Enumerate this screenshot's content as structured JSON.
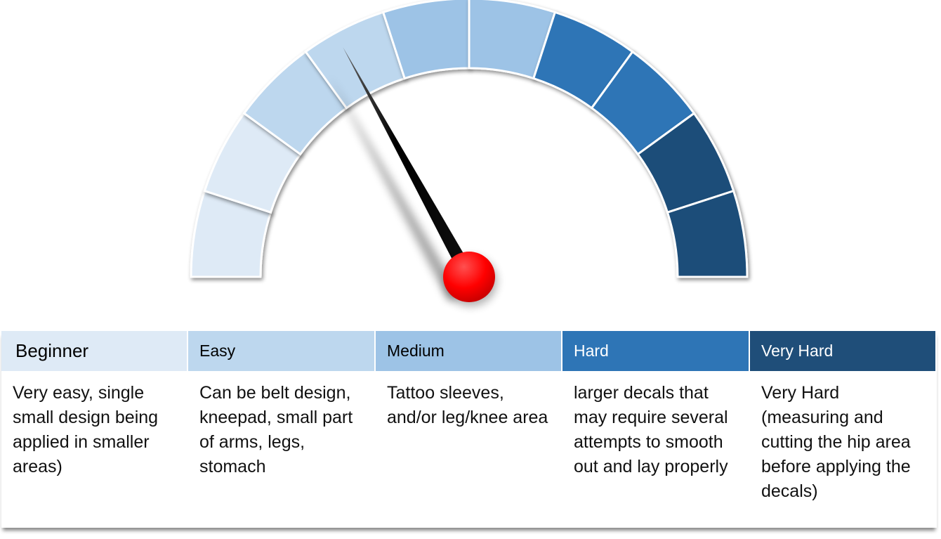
{
  "gauge": {
    "needle_value": 0.34,
    "segment_colors": [
      "#DEEAF6",
      "#DEEAF6",
      "#BDD7EE",
      "#BDD7EE",
      "#9DC3E6",
      "#9DC3E6",
      "#2E75B6",
      "#2E75B6",
      "#1F4E79",
      "#1F4E79"
    ],
    "needle_color": "#000000",
    "hub_color": "#FF0000"
  },
  "table": {
    "columns": [
      {
        "header": "Beginner",
        "color": "#DEEAF6",
        "text_color": "#000000",
        "description": "Very easy, single small design being applied in smaller areas)"
      },
      {
        "header": "Easy",
        "color": "#BDD7EE",
        "text_color": "#000000",
        "description": "Can be belt design, kneepad, small part of arms, legs, stomach"
      },
      {
        "header": "Medium",
        "color": "#9DC3E6",
        "text_color": "#000000",
        "description": "Tattoo sleeves, and/or leg/knee area"
      },
      {
        "header": "Hard",
        "color": "#2E75B6",
        "text_color": "#FFFFFF",
        "description": "larger decals that may require several attempts to smooth out and lay properly"
      },
      {
        "header": "Very Hard",
        "color": "#1F4E79",
        "text_color": "#FFFFFF",
        "description": "Very Hard (measuring and cutting the hip area before applying the decals)"
      }
    ]
  }
}
